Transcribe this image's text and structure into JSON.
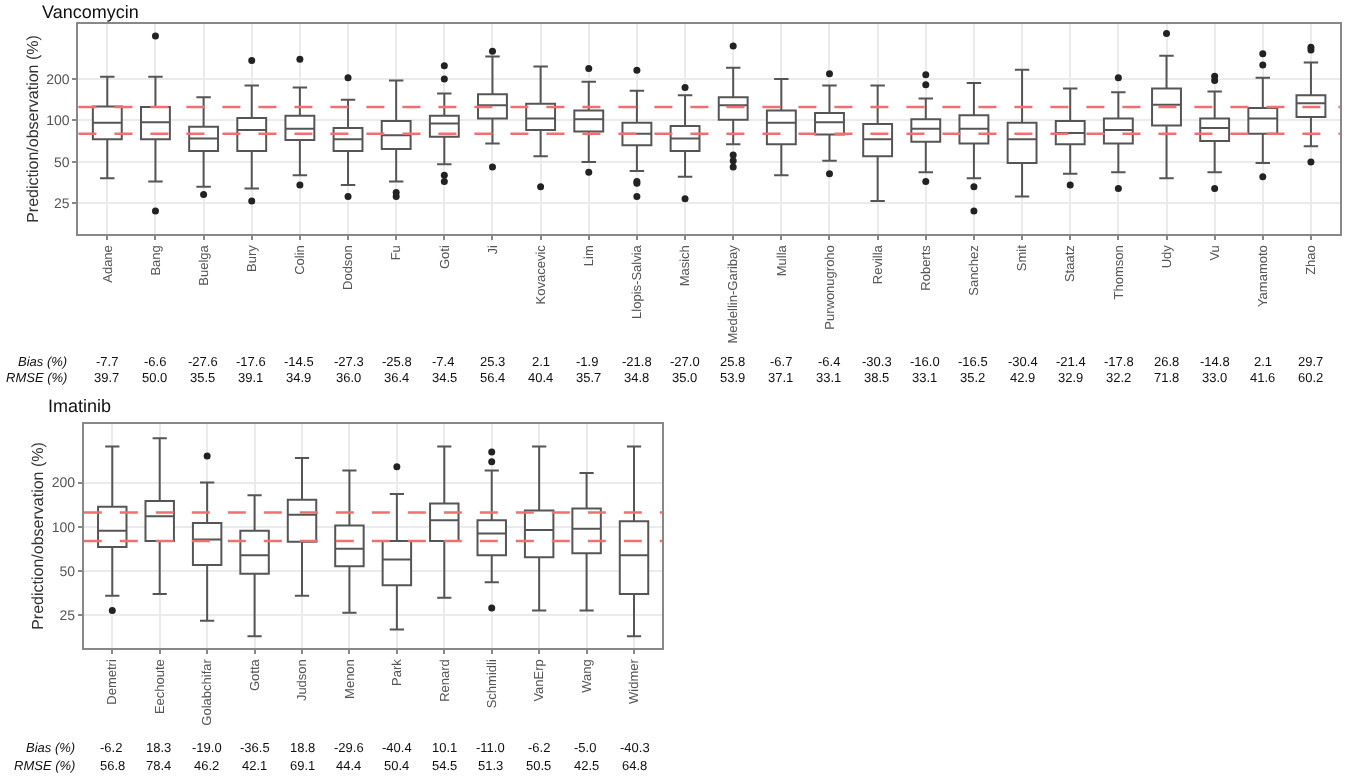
{
  "chart_data": [
    {
      "type": "box",
      "title": "Vancomycin",
      "ylabel": "Prediction/observation (%)",
      "log": true,
      "grid": true,
      "ylim": [
        15,
        500
      ],
      "yticks": [
        25,
        50,
        100,
        200
      ],
      "color": "#555555",
      "marker": "circle",
      "categories": [
        "Adane",
        "Bang",
        "Buelga",
        "Bury",
        "Colin",
        "Dodson",
        "Fu",
        "Goti",
        "Ji",
        "Kovacevic",
        "Lim",
        "Llopis-Salvia",
        "Masich",
        "Medellin-Garibay",
        "Mulla",
        "Purwonugroho",
        "Revilla",
        "Roberts",
        "Sanchez",
        "Smit",
        "Staatz",
        "Thomson",
        "Udy",
        "Vu",
        "Yamamoto",
        "Zhao"
      ],
      "boxes": [
        {
          "low": 38,
          "q1": 73,
          "median": 96,
          "q3": 126,
          "high": 207
        },
        {
          "low": 36,
          "q1": 73,
          "median": 97,
          "q3": 125,
          "high": 207,
          "outliers": [
            409,
            22
          ]
        },
        {
          "low": 33,
          "q1": 60,
          "median": 74,
          "q3": 90,
          "high": 147,
          "outliers": [
            29
          ]
        },
        {
          "low": 32,
          "q1": 60,
          "median": 85,
          "q3": 104,
          "high": 179,
          "outliers": [
            272,
            26
          ]
        },
        {
          "low": 40,
          "q1": 72,
          "median": 87,
          "q3": 108,
          "high": 173,
          "outliers": [
            278,
            34
          ]
        },
        {
          "low": 34,
          "q1": 60,
          "median": 73,
          "q3": 88,
          "high": 141,
          "outliers": [
            204,
            28
          ]
        },
        {
          "low": 36,
          "q1": 62,
          "median": 78,
          "q3": 99,
          "high": 195,
          "outliers": [
            30,
            28
          ]
        },
        {
          "low": 48,
          "q1": 76,
          "median": 95,
          "q3": 108,
          "high": 157,
          "outliers": [
            249,
            200,
            40,
            36
          ]
        },
        {
          "low": 68,
          "q1": 103,
          "median": 129,
          "q3": 155,
          "high": 290,
          "outliers": [
            317,
            46
          ]
        },
        {
          "low": 55,
          "q1": 85,
          "median": 103,
          "q3": 132,
          "high": 246,
          "outliers": [
            33
          ]
        },
        {
          "low": 50,
          "q1": 83,
          "median": 102,
          "q3": 118,
          "high": 191,
          "outliers": [
            238,
            42
          ]
        },
        {
          "low": 43,
          "q1": 66,
          "median": 80,
          "q3": 96,
          "high": 164,
          "outliers": [
            231,
            36,
            35,
            28
          ]
        },
        {
          "low": 39,
          "q1": 60,
          "median": 74,
          "q3": 91,
          "high": 152,
          "outliers": [
            173,
            27
          ]
        },
        {
          "low": 67,
          "q1": 101,
          "median": 129,
          "q3": 147,
          "high": 241,
          "outliers": [
            347,
            56,
            51,
            46
          ]
        },
        {
          "low": 40,
          "q1": 67,
          "median": 96,
          "q3": 118,
          "high": 200
        },
        {
          "low": 51,
          "q1": 79,
          "median": 97,
          "q3": 113,
          "high": 179,
          "outliers": [
            218,
            41
          ]
        },
        {
          "low": 26,
          "q1": 55,
          "median": 73,
          "q3": 94,
          "high": 179
        },
        {
          "low": 42,
          "q1": 70,
          "median": 87,
          "q3": 102,
          "high": 144,
          "outliers": [
            214,
            181,
            36
          ]
        },
        {
          "low": 38,
          "q1": 68,
          "median": 87,
          "q3": 109,
          "high": 187,
          "outliers": [
            33,
            22
          ]
        },
        {
          "low": 28,
          "q1": 49,
          "median": 73,
          "q3": 96,
          "high": 233
        },
        {
          "low": 41,
          "q1": 67,
          "median": 81,
          "q3": 99,
          "high": 170,
          "outliers": [
            34
          ]
        },
        {
          "low": 42,
          "q1": 68,
          "median": 85,
          "q3": 103,
          "high": 160,
          "outliers": [
            204,
            32
          ]
        },
        {
          "low": 38,
          "q1": 92,
          "median": 130,
          "q3": 170,
          "high": 294,
          "outliers": [
            427
          ]
        },
        {
          "low": 42,
          "q1": 71,
          "median": 88,
          "q3": 103,
          "high": 162,
          "outliers": [
            209,
            195,
            32
          ]
        },
        {
          "low": 49,
          "q1": 80,
          "median": 103,
          "q3": 123,
          "high": 204,
          "outliers": [
            304,
            252,
            39
          ]
        },
        {
          "low": 65,
          "q1": 106,
          "median": 133,
          "q3": 152,
          "high": 263,
          "outliers": [
            339,
            324,
            50
          ]
        }
      ],
      "ref_lines": [
        {
          "axis": "y",
          "value": 125,
          "color": "#f07070",
          "line_style": "dashed"
        },
        {
          "axis": "y",
          "value": 80,
          "color": "#f07070",
          "line_style": "dashed"
        }
      ],
      "annotations": [
        "Bias (%)",
        "-7.7",
        "-6.6",
        "-27.6",
        "-17.6",
        "-14.5",
        "-27.3",
        "-25.8",
        "-7.4",
        "25.3",
        "2.1",
        "-1.9",
        "-21.8",
        "-27.0",
        "25.8",
        "-6.7",
        "-6.4",
        "-30.3",
        "-16.0",
        "-16.5",
        "-30.4",
        "-21.4",
        "-17.8",
        "26.8",
        "-14.8",
        "2.1",
        "29.7",
        "RMSE (%)",
        "39.7",
        "50.0",
        "35.5",
        "39.1",
        "34.9",
        "36.0",
        "36.4",
        "34.5",
        "56.4",
        "40.4",
        "35.7",
        "34.8",
        "35.0",
        "53.9",
        "37.1",
        "33.1",
        "38.5",
        "33.1",
        "35.2",
        "42.9",
        "32.9",
        "32.2",
        "71.8",
        "33.0",
        "41.6",
        "60.2"
      ]
    },
    {
      "type": "box",
      "title": "Imatinib",
      "ylabel": "Prediction/observation (%)",
      "log": true,
      "grid": true,
      "ylim": [
        15,
        500
      ],
      "yticks": [
        25,
        50,
        100,
        200
      ],
      "color": "#555555",
      "marker": "circle",
      "categories": [
        "Demetri",
        "Eechoute",
        "Golabchifar",
        "Gotta",
        "Judson",
        "Menon",
        "Park",
        "Renard",
        "Schmidli",
        "VanErp",
        "Wang",
        "Widmer"
      ],
      "boxes": [
        {
          "low": 34,
          "q1": 73,
          "median": 94,
          "q3": 137,
          "high": 352,
          "outliers": [
            27
          ]
        },
        {
          "low": 35,
          "q1": 80,
          "median": 118,
          "q3": 150,
          "high": 400
        },
        {
          "low": 23,
          "q1": 55,
          "median": 82,
          "q3": 106,
          "high": 200,
          "outliers": [
            303
          ]
        },
        {
          "low": 18,
          "q1": 48,
          "median": 64,
          "q3": 94,
          "high": 164
        },
        {
          "low": 34,
          "q1": 79,
          "median": 121,
          "q3": 153,
          "high": 294
        },
        {
          "low": 26,
          "q1": 54,
          "median": 71,
          "q3": 102,
          "high": 241
        },
        {
          "low": 20,
          "q1": 40,
          "median": 60,
          "q3": 80,
          "high": 167,
          "outliers": [
            256
          ]
        },
        {
          "low": 33,
          "q1": 80,
          "median": 111,
          "q3": 144,
          "high": 352
        },
        {
          "low": 42,
          "q1": 64,
          "median": 90,
          "q3": 111,
          "high": 241,
          "outliers": [
            322,
            277,
            28
          ]
        },
        {
          "low": 27,
          "q1": 62,
          "median": 95,
          "q3": 129,
          "high": 352
        },
        {
          "low": 27,
          "q1": 66,
          "median": 97,
          "q3": 133,
          "high": 232
        },
        {
          "low": 18,
          "q1": 35,
          "median": 64,
          "q3": 109,
          "high": 352
        }
      ],
      "ref_lines": [
        {
          "axis": "y",
          "value": 125,
          "color": "#f07070",
          "line_style": "dashed"
        },
        {
          "axis": "y",
          "value": 80,
          "color": "#f07070",
          "line_style": "dashed"
        }
      ],
      "annotations": [
        "Bias (%)",
        "-6.2",
        "18.3",
        "-19.0",
        "-36.5",
        "18.8",
        "-29.6",
        "-40.4",
        "10.1",
        "-11.0",
        "-6.2",
        "-5.0",
        "-40.3",
        "RMSE (%)",
        "56.8",
        "78.4",
        "46.2",
        "42.1",
        "69.1",
        "44.4",
        "50.4",
        "54.5",
        "51.3",
        "50.5",
        "42.5",
        "64.8"
      ]
    }
  ]
}
